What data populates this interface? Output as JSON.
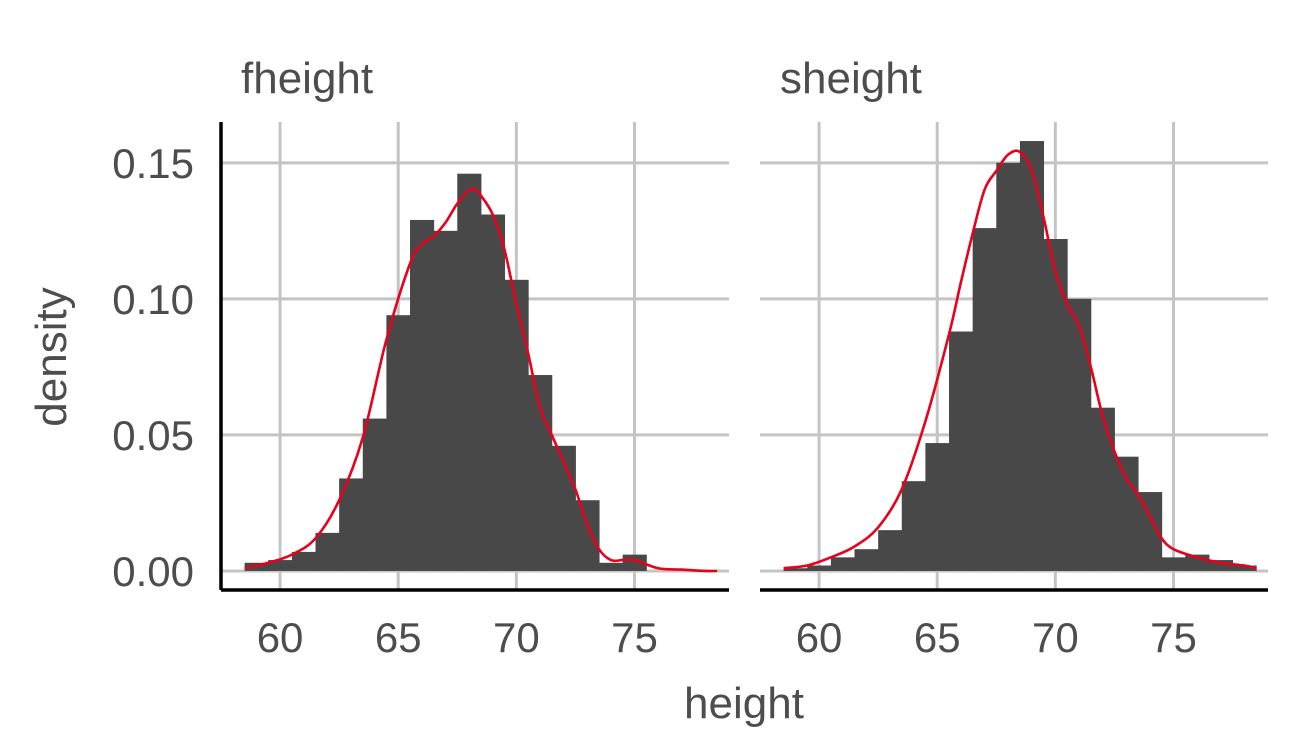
{
  "chart_data": {
    "type": "histogram",
    "xlabel": "height",
    "ylabel": "density",
    "xlim": [
      57.5,
      79
    ],
    "ylim": [
      -0.007,
      0.165
    ],
    "x_ticks": [
      60,
      65,
      70,
      75
    ],
    "y_ticks": [
      0.0,
      0.05,
      0.1,
      0.15
    ],
    "y_tick_labels": [
      "0.00",
      "0.05",
      "0.10",
      "0.15"
    ],
    "grid": true,
    "legend": "none",
    "colors": {
      "bars": "#484848",
      "density": "#e8001c",
      "grid": "#c4c4c4"
    },
    "panels": [
      {
        "name": "fheight",
        "bins": [
          {
            "x0": 58.5,
            "x1": 59.5,
            "density": 0.003
          },
          {
            "x0": 59.5,
            "x1": 60.5,
            "density": 0.004
          },
          {
            "x0": 60.5,
            "x1": 61.5,
            "density": 0.007
          },
          {
            "x0": 61.5,
            "x1": 62.5,
            "density": 0.014
          },
          {
            "x0": 62.5,
            "x1": 63.5,
            "density": 0.034
          },
          {
            "x0": 63.5,
            "x1": 64.5,
            "density": 0.056
          },
          {
            "x0": 64.5,
            "x1": 65.5,
            "density": 0.094
          },
          {
            "x0": 65.5,
            "x1": 66.5,
            "density": 0.129
          },
          {
            "x0": 66.5,
            "x1": 67.5,
            "density": 0.125
          },
          {
            "x0": 67.5,
            "x1": 68.5,
            "density": 0.146
          },
          {
            "x0": 68.5,
            "x1": 69.5,
            "density": 0.131
          },
          {
            "x0": 69.5,
            "x1": 70.5,
            "density": 0.107
          },
          {
            "x0": 70.5,
            "x1": 71.5,
            "density": 0.072
          },
          {
            "x0": 71.5,
            "x1": 72.5,
            "density": 0.046
          },
          {
            "x0": 72.5,
            "x1": 73.5,
            "density": 0.026
          },
          {
            "x0": 73.5,
            "x1": 74.5,
            "density": 0.003
          },
          {
            "x0": 74.5,
            "x1": 75.5,
            "density": 0.006
          }
        ],
        "density_curve": {
          "x": [
            58.5,
            59.5,
            60.5,
            61.5,
            62.5,
            63.5,
            64.5,
            65.5,
            66,
            66.5,
            67,
            67.5,
            68,
            68.3,
            68.5,
            69,
            69.5,
            70,
            70.5,
            71,
            71.5,
            72,
            72.5,
            73,
            73.5,
            74,
            74.5,
            75,
            76,
            77,
            78,
            78.5
          ],
          "y": [
            0.001,
            0.003,
            0.006,
            0.012,
            0.026,
            0.049,
            0.085,
            0.113,
            0.12,
            0.123,
            0.128,
            0.135,
            0.14,
            0.14,
            0.138,
            0.131,
            0.118,
            0.098,
            0.08,
            0.06,
            0.05,
            0.04,
            0.03,
            0.017,
            0.008,
            0.004,
            0.004,
            0.004,
            0.001,
            0.0005,
            0.0,
            0.0
          ]
        }
      },
      {
        "name": "sheight",
        "bins": [
          {
            "x0": 58.5,
            "x1": 59.5,
            "density": 0.001
          },
          {
            "x0": 59.5,
            "x1": 60.5,
            "density": 0.002
          },
          {
            "x0": 60.5,
            "x1": 61.5,
            "density": 0.005
          },
          {
            "x0": 61.5,
            "x1": 62.5,
            "density": 0.008
          },
          {
            "x0": 62.5,
            "x1": 63.5,
            "density": 0.015
          },
          {
            "x0": 63.5,
            "x1": 64.5,
            "density": 0.033
          },
          {
            "x0": 64.5,
            "x1": 65.5,
            "density": 0.047
          },
          {
            "x0": 65.5,
            "x1": 66.5,
            "density": 0.088
          },
          {
            "x0": 66.5,
            "x1": 67.5,
            "density": 0.126
          },
          {
            "x0": 67.5,
            "x1": 68.5,
            "density": 0.15
          },
          {
            "x0": 68.5,
            "x1": 69.5,
            "density": 0.158
          },
          {
            "x0": 69.5,
            "x1": 70.5,
            "density": 0.122
          },
          {
            "x0": 70.5,
            "x1": 71.5,
            "density": 0.1
          },
          {
            "x0": 71.5,
            "x1": 72.5,
            "density": 0.06
          },
          {
            "x0": 72.5,
            "x1": 73.5,
            "density": 0.042
          },
          {
            "x0": 73.5,
            "x1": 74.5,
            "density": 0.029
          },
          {
            "x0": 74.5,
            "x1": 75.5,
            "density": 0.005
          },
          {
            "x0": 75.5,
            "x1": 76.5,
            "density": 0.006
          },
          {
            "x0": 76.5,
            "x1": 77.5,
            "density": 0.004
          },
          {
            "x0": 77.5,
            "x1": 78.5,
            "density": 0.002
          }
        ],
        "density_curve": {
          "x": [
            58.5,
            59.5,
            60.5,
            61.5,
            62.5,
            63.5,
            64.5,
            65.5,
            66,
            66.5,
            67,
            67.5,
            68,
            68.5,
            69,
            69.5,
            70,
            70.5,
            71,
            71.5,
            72,
            72.5,
            73,
            73.5,
            74,
            74.5,
            75,
            76,
            77,
            78,
            78.5
          ],
          "y": [
            0.001,
            0.002,
            0.005,
            0.009,
            0.016,
            0.03,
            0.055,
            0.087,
            0.106,
            0.124,
            0.14,
            0.147,
            0.153,
            0.154,
            0.147,
            0.13,
            0.11,
            0.098,
            0.09,
            0.075,
            0.057,
            0.044,
            0.034,
            0.028,
            0.02,
            0.012,
            0.008,
            0.005,
            0.003,
            0.002,
            0.001
          ]
        }
      }
    ]
  }
}
